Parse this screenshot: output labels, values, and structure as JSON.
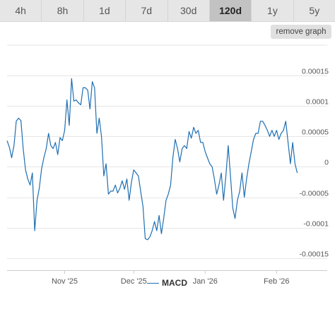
{
  "tabs": [
    {
      "label": "4h",
      "active": false
    },
    {
      "label": "8h",
      "active": false
    },
    {
      "label": "1d",
      "active": false
    },
    {
      "label": "7d",
      "active": false
    },
    {
      "label": "30d",
      "active": false
    },
    {
      "label": "120d",
      "active": true
    },
    {
      "label": "1y",
      "active": false
    },
    {
      "label": "5y",
      "active": false
    }
  ],
  "remove_button": "remove graph",
  "colors": {
    "series": "#1f6fb2",
    "grid": "#e6e6e6",
    "active_tab": "#c2c2c2"
  },
  "chart_data": {
    "type": "line",
    "title": "",
    "xlabel": "",
    "ylabel": "",
    "ylim": [
      -0.00017,
      0.0002
    ],
    "x_range": [
      "2025-10-07",
      "2026-02-23"
    ],
    "x_ticks": [
      {
        "date": "2025-11-01",
        "label": "Nov '25"
      },
      {
        "date": "2025-12-01",
        "label": "Dec '25"
      },
      {
        "date": "2026-01-01",
        "label": "Jan '26"
      },
      {
        "date": "2026-02-01",
        "label": "Feb '26"
      }
    ],
    "y_ticks": [
      {
        "value": 0.00015,
        "label": "0.00015"
      },
      {
        "value": 0.0001,
        "label": "0.0001"
      },
      {
        "value": 5e-05,
        "label": "0.00005"
      },
      {
        "value": 0,
        "label": "0"
      },
      {
        "value": -5e-05,
        "label": "-0.00005"
      },
      {
        "value": -0.0001,
        "label": "-0.0001"
      },
      {
        "value": -0.00015,
        "label": "-0.00015"
      }
    ],
    "grid": true,
    "legend": "bottom-center",
    "series": [
      {
        "name": "MACD",
        "points": [
          [
            "2025-10-07",
            4.3e-05
          ],
          [
            "2025-10-08",
            3.2e-05
          ],
          [
            "2025-10-09",
            1.5e-05
          ],
          [
            "2025-10-10",
            3.5e-05
          ],
          [
            "2025-10-11",
            7.5e-05
          ],
          [
            "2025-10-12",
            8e-05
          ],
          [
            "2025-10-13",
            7.6e-05
          ],
          [
            "2025-10-14",
            3e-05
          ],
          [
            "2025-10-15",
            -5e-06
          ],
          [
            "2025-10-16",
            -2e-05
          ],
          [
            "2025-10-17",
            -3e-05
          ],
          [
            "2025-10-18",
            -1e-05
          ],
          [
            "2025-10-19",
            -0.000105
          ],
          [
            "2025-10-20",
            -5.5e-05
          ],
          [
            "2025-10-21",
            -3.5e-05
          ],
          [
            "2025-10-22",
            -3e-06
          ],
          [
            "2025-10-23",
            1.5e-05
          ],
          [
            "2025-10-24",
            3e-05
          ],
          [
            "2025-10-25",
            5.5e-05
          ],
          [
            "2025-10-26",
            3.5e-05
          ],
          [
            "2025-10-27",
            3e-05
          ],
          [
            "2025-10-28",
            4e-05
          ],
          [
            "2025-10-29",
            2e-05
          ],
          [
            "2025-10-30",
            4.8e-05
          ],
          [
            "2025-10-31",
            4.3e-05
          ],
          [
            "2025-11-01",
            6e-05
          ],
          [
            "2025-11-02",
            0.00011
          ],
          [
            "2025-11-03",
            6.8e-05
          ],
          [
            "2025-11-04",
            0.000145
          ],
          [
            "2025-11-05",
            0.000108
          ],
          [
            "2025-11-06",
            0.00011
          ],
          [
            "2025-11-07",
            0.000105
          ],
          [
            "2025-11-08",
            0.000102
          ],
          [
            "2025-11-09",
            0.00013
          ],
          [
            "2025-11-10",
            0.00013
          ],
          [
            "2025-11-11",
            0.000126
          ],
          [
            "2025-11-12",
            9.5e-05
          ],
          [
            "2025-11-13",
            0.00014
          ],
          [
            "2025-11-14",
            0.00013
          ],
          [
            "2025-11-15",
            5.5e-05
          ],
          [
            "2025-11-16",
            8e-05
          ],
          [
            "2025-11-17",
            5e-05
          ],
          [
            "2025-11-18",
            -1.5e-05
          ],
          [
            "2025-11-19",
            5e-06
          ],
          [
            "2025-11-20",
            -4.5e-05
          ],
          [
            "2025-11-21",
            -4e-05
          ],
          [
            "2025-11-22",
            -4e-05
          ],
          [
            "2025-11-23",
            -3e-05
          ],
          [
            "2025-11-24",
            -4.3e-05
          ],
          [
            "2025-11-25",
            -3.5e-05
          ],
          [
            "2025-11-26",
            -2.3e-05
          ],
          [
            "2025-11-27",
            -3.7e-05
          ],
          [
            "2025-11-28",
            -2e-05
          ],
          [
            "2025-11-29",
            -5.5e-05
          ],
          [
            "2025-11-30",
            -2.5e-05
          ],
          [
            "2025-12-01",
            -5e-06
          ],
          [
            "2025-12-02",
            -1e-05
          ],
          [
            "2025-12-03",
            -1.5e-05
          ],
          [
            "2025-12-04",
            -4e-05
          ],
          [
            "2025-12-05",
            -6.5e-05
          ],
          [
            "2025-12-06",
            -0.000118
          ],
          [
            "2025-12-07",
            -0.00012
          ],
          [
            "2025-12-08",
            -0.000115
          ],
          [
            "2025-12-09",
            -0.000105
          ],
          [
            "2025-12-10",
            -9e-05
          ],
          [
            "2025-12-11",
            -0.000105
          ],
          [
            "2025-12-12",
            -8e-05
          ],
          [
            "2025-12-13",
            -0.00011
          ],
          [
            "2025-12-14",
            -8.5e-05
          ],
          [
            "2025-12-15",
            -5.5e-05
          ],
          [
            "2025-12-16",
            -4.5e-05
          ],
          [
            "2025-12-17",
            -3e-05
          ],
          [
            "2025-12-18",
            1.5e-05
          ],
          [
            "2025-12-19",
            4.5e-05
          ],
          [
            "2025-12-20",
            3e-05
          ],
          [
            "2025-12-21",
            8e-06
          ],
          [
            "2025-12-22",
            3e-05
          ],
          [
            "2025-12-23",
            3.5e-05
          ],
          [
            "2025-12-24",
            3e-05
          ],
          [
            "2025-12-25",
            5.8e-05
          ],
          [
            "2025-12-26",
            4.7e-05
          ],
          [
            "2025-12-27",
            6.5e-05
          ],
          [
            "2025-12-28",
            5.5e-05
          ],
          [
            "2025-12-29",
            6e-05
          ],
          [
            "2025-12-30",
            4e-05
          ],
          [
            "2025-12-31",
            4e-05
          ],
          [
            "2026-01-01",
            2.5e-05
          ],
          [
            "2026-01-02",
            1.5e-05
          ],
          [
            "2026-01-03",
            5e-06
          ],
          [
            "2026-01-04",
            0.0
          ],
          [
            "2026-01-05",
            -2e-05
          ],
          [
            "2026-01-06",
            -4.5e-05
          ],
          [
            "2026-01-07",
            -3e-05
          ],
          [
            "2026-01-08",
            -1e-05
          ],
          [
            "2026-01-09",
            -5.5e-05
          ],
          [
            "2026-01-10",
            -1.5e-05
          ],
          [
            "2026-01-11",
            3.5e-05
          ],
          [
            "2026-01-12",
            -1.5e-05
          ],
          [
            "2026-01-13",
            -6.8e-05
          ],
          [
            "2026-01-14",
            -8.5e-05
          ],
          [
            "2026-01-15",
            -5.5e-05
          ],
          [
            "2026-01-16",
            -4e-05
          ],
          [
            "2026-01-17",
            -1e-05
          ],
          [
            "2026-01-18",
            -5e-05
          ],
          [
            "2026-01-19",
            -2e-05
          ],
          [
            "2026-01-20",
            5e-06
          ],
          [
            "2026-01-21",
            2.5e-05
          ],
          [
            "2026-01-22",
            4.5e-05
          ],
          [
            "2026-01-23",
            5.5e-05
          ],
          [
            "2026-01-24",
            5.5e-05
          ],
          [
            "2026-01-25",
            7.5e-05
          ],
          [
            "2026-01-26",
            7.5e-05
          ],
          [
            "2026-01-27",
            6.8e-05
          ],
          [
            "2026-01-28",
            6e-05
          ],
          [
            "2026-01-29",
            5e-05
          ],
          [
            "2026-01-30",
            6e-05
          ],
          [
            "2026-01-31",
            5e-05
          ],
          [
            "2026-02-01",
            6e-05
          ],
          [
            "2026-02-02",
            4.5e-05
          ],
          [
            "2026-02-03",
            5.5e-05
          ],
          [
            "2026-02-04",
            6e-05
          ],
          [
            "2026-02-05",
            7.5e-05
          ],
          [
            "2026-02-06",
            4e-05
          ],
          [
            "2026-02-07",
            5e-06
          ],
          [
            "2026-02-08",
            4e-05
          ],
          [
            "2026-02-09",
            5e-06
          ],
          [
            "2026-02-10",
            -1e-05
          ]
        ]
      }
    ]
  }
}
